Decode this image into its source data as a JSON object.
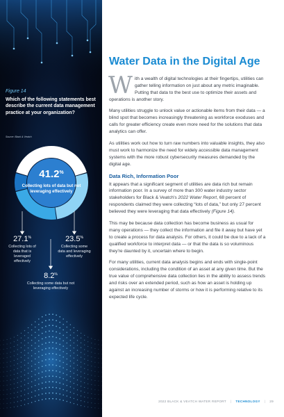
{
  "figure": {
    "label": "Figure 14",
    "question": "Which of the following statements best describe the current data management practice at your organization?",
    "source": "Source: Black & Veatch",
    "center_value": "41.2",
    "center_unit": "%",
    "center_description": "Collecting lots of data but not leveraging effectively",
    "stats": [
      {
        "value": "27.1",
        "unit": "%",
        "description": "Collecting lots of data that is leveraged effectively"
      },
      {
        "value": "23.5",
        "unit": "%",
        "description": "Collecting some data and leveraging effectively"
      },
      {
        "value": "8.2",
        "unit": "%",
        "description": "Collecting some data but not leveraging effectively"
      }
    ],
    "colors": {
      "segment_primary": "#ffffff",
      "segment_secondary": "#8fd3f5",
      "segment_tertiary": "#3aa9e6",
      "segment_quaternary": "#1b74c4"
    }
  },
  "chart_data": {
    "type": "pie",
    "categories": [
      "Collecting lots of data but not leveraging effectively",
      "Collecting lots of data that is leveraged effectively",
      "Collecting some data and leveraging effectively",
      "Collecting some data but not leveraging effectively"
    ],
    "values": [
      41.2,
      27.1,
      23.5,
      8.2
    ],
    "title": "",
    "donut": true
  },
  "article": {
    "title": "Water Data in the Digital Age",
    "dropcap": "W",
    "intro": "ith a wealth of digital technologies at their fingertips, utilities can gather telling information on just about any metric imaginable. Putting that data to the best use to optimize their assets and operations is another story.",
    "para2": "Many utilities struggle to unlock value or actionable items from their data — a blind spot that becomes increasingly threatening as workforce exoduses and calls for greater efficiency create even more need for the solutions that data analytics can offer.",
    "para3": "As utilities work out how to turn raw numbers into valuable insights, they also must work to harmonize the need for widely accessible data management systems with the more robust cybersecurity measures demanded by the digital age.",
    "subhead": "Data Rich, Information Poor",
    "para4_a": "It appears that a significant segment of utilities are data rich but remain information poor. In a survey of more than 300 water industry sector stakeholders for Black & Veatch's ",
    "para4_italic": "2022 Water Report",
    "para4_b": ", 68 percent of respondents claimed they were collecting “lots of data,” but only 27 percent believed they were leveraging that data effectively ",
    "para4_ref": "(Figure 14)",
    "para4_end": ".",
    "para5": "This may be because data collection has become business as usual for many operations — they collect the information and file it away but have yet to create a process for data analysis. For others, it could be due to a lack of a qualified workforce to interpret data — or that the data is so voluminous they're daunted by it, uncertain where to begin.",
    "para6": "For many utilities, current data analysis begins and ends with single-point considerations, including the condition of an asset at any given time. But the true value of comprehensive data collection lies in the ability to assess trends and risks over an extended period, such as how an asset is holding up against an increasing number of storms or how it is performing relative to its expected life cycle."
  },
  "footer": {
    "report": "2022 BLACK & VEATCH WATER REPORT",
    "section": "TECHNOLOGY",
    "page": "29",
    "separator": "|"
  }
}
